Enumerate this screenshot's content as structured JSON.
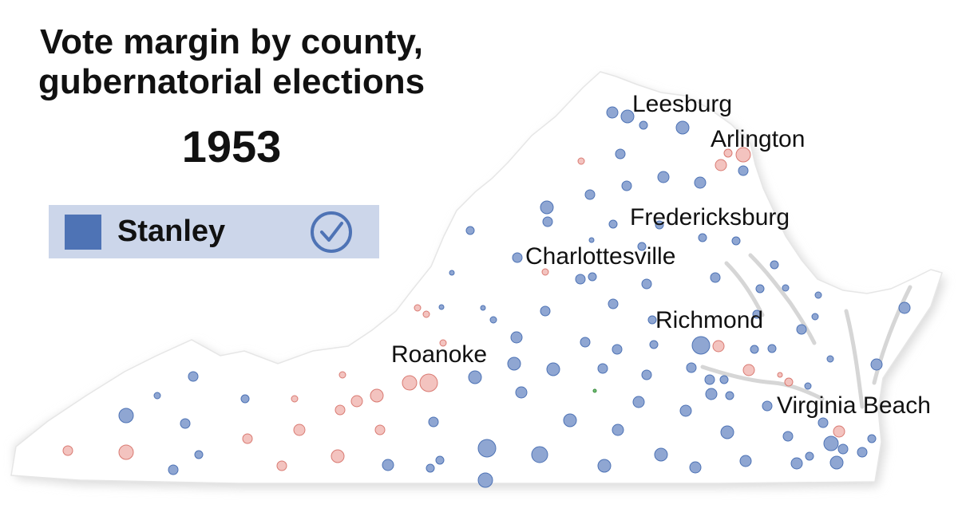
{
  "title": {
    "line1": "Vote margin by county,",
    "line2": "gubernatorial elections",
    "year": "1953"
  },
  "legend": {
    "candidate": "Stanley",
    "color": "#4e73b5",
    "background": "#ccd6ea",
    "winner_icon": "check-circle-icon"
  },
  "colors": {
    "democrat": "#4e73b5",
    "republican": "#e8a29c",
    "other": "#4caf50",
    "state_fill": "#ffffff",
    "shadow": "#d8d8d8"
  },
  "cities": [
    {
      "id": "leesburg",
      "name": "Leesburg"
    },
    {
      "id": "arlington",
      "name": "Arlington"
    },
    {
      "id": "fredericksburg",
      "name": "Fredericksburg"
    },
    {
      "id": "charlottesville",
      "name": "Charlottesville"
    },
    {
      "id": "richmond",
      "name": "Richmond"
    },
    {
      "id": "roanoke",
      "name": "Roanoke"
    },
    {
      "id": "virginia-beach",
      "name": "Virginia Beach"
    }
  ]
}
